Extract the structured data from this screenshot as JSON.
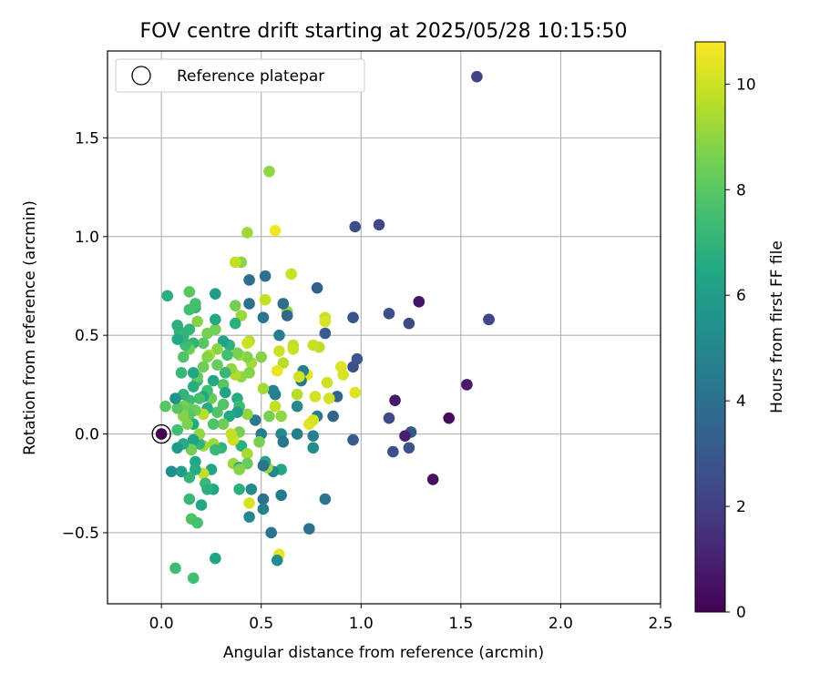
{
  "chart_data": {
    "type": "scatter",
    "title": "FOV centre drift starting at 2025/05/28 10:15:50",
    "xlabel": "Angular distance from reference (arcmin)",
    "ylabel": "Rotation from reference (arcmin)",
    "xlim": [
      -0.27,
      2.5
    ],
    "ylim": [
      -0.86,
      1.94
    ],
    "xticks": [
      0.0,
      0.5,
      1.0,
      1.5,
      2.0,
      2.5
    ],
    "xtick_labels": [
      "0.0",
      "0.5",
      "1.0",
      "1.5",
      "2.0",
      "2.5"
    ],
    "yticks": [
      -0.5,
      0.0,
      0.5,
      1.0,
      1.5
    ],
    "ytick_labels": [
      "−0.5",
      "0.0",
      "0.5",
      "1.0",
      "1.5"
    ],
    "grid": true,
    "legend": {
      "placement": "top-left",
      "entries": [
        "Reference platepar"
      ]
    },
    "colorbar": {
      "label": "Hours from first FF file",
      "colormap": "viridis",
      "range": [
        0,
        10.8
      ],
      "ticks": [
        0,
        2,
        4,
        6,
        8,
        10
      ],
      "tick_labels": [
        "0",
        "2",
        "4",
        "6",
        "8",
        "10"
      ]
    },
    "reference_point": {
      "x": 0.0,
      "y": 0.0
    },
    "points": [
      {
        "x": 0.0,
        "y": 0.0,
        "h": 0.0
      },
      {
        "x": 1.58,
        "y": 1.81,
        "h": 2.2
      },
      {
        "x": 1.64,
        "y": 0.58,
        "h": 2.2
      },
      {
        "x": 1.64,
        "y": 0.58,
        "h": 2.3
      },
      {
        "x": 1.53,
        "y": 0.25,
        "h": 0.8
      },
      {
        "x": 1.44,
        "y": 0.08,
        "h": 0.3
      },
      {
        "x": 1.36,
        "y": -0.23,
        "h": 0.5
      },
      {
        "x": 1.29,
        "y": 0.67,
        "h": 0.6
      },
      {
        "x": 1.24,
        "y": 0.56,
        "h": 2.5
      },
      {
        "x": 1.25,
        "y": 0.01,
        "h": 2.9
      },
      {
        "x": 1.24,
        "y": -0.07,
        "h": 2.7
      },
      {
        "x": 1.22,
        "y": -0.01,
        "h": 0.9
      },
      {
        "x": 1.17,
        "y": 0.17,
        "h": 0.7
      },
      {
        "x": 1.16,
        "y": -0.09,
        "h": 2.6
      },
      {
        "x": 1.14,
        "y": 0.61,
        "h": 2.6
      },
      {
        "x": 1.14,
        "y": 0.08,
        "h": 2.5
      },
      {
        "x": 1.09,
        "y": 1.06,
        "h": 2.4
      },
      {
        "x": 0.97,
        "y": 1.05,
        "h": 2.6
      },
      {
        "x": 0.96,
        "y": 0.59,
        "h": 2.7
      },
      {
        "x": 0.98,
        "y": 0.38,
        "h": 2.9
      },
      {
        "x": 0.96,
        "y": 0.34,
        "h": 2.8
      },
      {
        "x": 0.96,
        "y": -0.03,
        "h": 3.0
      },
      {
        "x": 0.97,
        "y": 0.21,
        "h": 10.3
      },
      {
        "x": 0.9,
        "y": 0.34,
        "h": 10.3
      },
      {
        "x": 0.91,
        "y": 0.3,
        "h": 10.2
      },
      {
        "x": 0.88,
        "y": 0.19,
        "h": 3.4
      },
      {
        "x": 0.86,
        "y": 0.09,
        "h": 3.5
      },
      {
        "x": 0.83,
        "y": 0.26,
        "h": 10.0
      },
      {
        "x": 0.84,
        "y": 0.18,
        "h": 10.1
      },
      {
        "x": 0.82,
        "y": 0.59,
        "h": 9.9
      },
      {
        "x": 0.82,
        "y": 0.57,
        "h": 10.2
      },
      {
        "x": 0.82,
        "y": 0.51,
        "h": 3.2
      },
      {
        "x": 0.82,
        "y": -0.33,
        "h": 4.2
      },
      {
        "x": 0.78,
        "y": 0.74,
        "h": 3.2
      },
      {
        "x": 0.79,
        "y": 0.44,
        "h": 9.7
      },
      {
        "x": 0.76,
        "y": 0.45,
        "h": 9.9
      },
      {
        "x": 0.77,
        "y": 0.19,
        "h": 10.1
      },
      {
        "x": 0.78,
        "y": 0.09,
        "h": 4.5
      },
      {
        "x": 0.76,
        "y": 0.07,
        "h": 10.2
      },
      {
        "x": 0.74,
        "y": 0.05,
        "h": 10.3
      },
      {
        "x": 0.76,
        "y": -0.01,
        "h": 4.7
      },
      {
        "x": 0.76,
        "y": -0.07,
        "h": 5.2
      },
      {
        "x": 0.74,
        "y": -0.48,
        "h": 4.0
      },
      {
        "x": 0.73,
        "y": 0.3,
        "h": 10.4
      },
      {
        "x": 0.71,
        "y": 0.32,
        "h": 4.7
      },
      {
        "x": 0.7,
        "y": 0.27,
        "h": 4.3
      },
      {
        "x": 0.69,
        "y": 0.29,
        "h": 10.0
      },
      {
        "x": 0.68,
        "y": 0.2,
        "h": 9.6
      },
      {
        "x": 0.68,
        "y": 0.14,
        "h": 5.0
      },
      {
        "x": 0.68,
        "y": 0.0,
        "h": 4.6
      },
      {
        "x": 0.66,
        "y": 0.45,
        "h": 9.8
      },
      {
        "x": 0.66,
        "y": 0.43,
        "h": 9.9
      },
      {
        "x": 0.65,
        "y": 0.81,
        "h": 9.9
      },
      {
        "x": 0.63,
        "y": 0.62,
        "h": 9.0
      },
      {
        "x": 0.61,
        "y": 0.66,
        "h": 3.8
      },
      {
        "x": 0.63,
        "y": 0.6,
        "h": 3.6
      },
      {
        "x": 0.61,
        "y": 0.36,
        "h": 9.6
      },
      {
        "x": 0.59,
        "y": 0.42,
        "h": 10.0
      },
      {
        "x": 0.59,
        "y": 0.5,
        "h": 4.5
      },
      {
        "x": 0.58,
        "y": 0.32,
        "h": 10.4
      },
      {
        "x": 0.57,
        "y": 1.03,
        "h": 10.6
      },
      {
        "x": 0.54,
        "y": 1.33,
        "h": 9.0
      },
      {
        "x": 0.57,
        "y": 0.14,
        "h": 9.8
      },
      {
        "x": 0.57,
        "y": 0.2,
        "h": 4.6
      },
      {
        "x": 0.56,
        "y": 0.22,
        "h": 4.8
      },
      {
        "x": 0.6,
        "y": 0.09,
        "h": 9.0
      },
      {
        "x": 0.6,
        "y": 0.0,
        "h": 5.0
      },
      {
        "x": 0.61,
        "y": -0.04,
        "h": 4.2
      },
      {
        "x": 0.6,
        "y": -0.18,
        "h": 6.5
      },
      {
        "x": 0.6,
        "y": -0.31,
        "h": 4.3
      },
      {
        "x": 0.59,
        "y": -0.61,
        "h": 10.4
      },
      {
        "x": 0.58,
        "y": -0.64,
        "h": 5.2
      },
      {
        "x": 0.55,
        "y": -0.5,
        "h": 4.2
      },
      {
        "x": 0.56,
        "y": -0.19,
        "h": 4.9
      },
      {
        "x": 0.53,
        "y": -0.17,
        "h": 9.2
      },
      {
        "x": 0.54,
        "y": 0.09,
        "h": 8.6
      },
      {
        "x": 0.51,
        "y": 0.23,
        "h": 9.3
      },
      {
        "x": 0.52,
        "y": 0.68,
        "h": 9.8
      },
      {
        "x": 0.52,
        "y": 0.8,
        "h": 4.0
      },
      {
        "x": 0.51,
        "y": 0.59,
        "h": 4.2
      },
      {
        "x": 0.5,
        "y": 0.39,
        "h": 8.8
      },
      {
        "x": 0.5,
        "y": 0.0,
        "h": 4.5
      },
      {
        "x": 0.52,
        "y": -0.14,
        "h": 6.3
      },
      {
        "x": 0.51,
        "y": -0.16,
        "h": 4.1
      },
      {
        "x": 0.51,
        "y": -0.33,
        "h": 4.0
      },
      {
        "x": 0.51,
        "y": -0.38,
        "h": 4.7
      },
      {
        "x": 0.49,
        "y": -0.04,
        "h": 8.6
      },
      {
        "x": 0.47,
        "y": 0.07,
        "h": 4.4
      },
      {
        "x": 0.45,
        "y": 0.36,
        "h": 9.3
      },
      {
        "x": 0.44,
        "y": 0.47,
        "h": 9.5
      },
      {
        "x": 0.43,
        "y": 0.46,
        "h": 10.0
      },
      {
        "x": 0.44,
        "y": 0.31,
        "h": 8.8
      },
      {
        "x": 0.43,
        "y": 0.39,
        "h": 8.8
      },
      {
        "x": 0.43,
        "y": 0.1,
        "h": 9.0
      },
      {
        "x": 0.44,
        "y": 0.66,
        "h": 4.0
      },
      {
        "x": 0.44,
        "y": 0.78,
        "h": 3.9
      },
      {
        "x": 0.43,
        "y": 1.02,
        "h": 9.2
      },
      {
        "x": 0.4,
        "y": 0.87,
        "h": 8.9
      },
      {
        "x": 0.37,
        "y": 0.87,
        "h": 9.8
      },
      {
        "x": 0.4,
        "y": 0.6,
        "h": 9.2
      },
      {
        "x": 0.37,
        "y": 0.65,
        "h": 8.5
      },
      {
        "x": 0.37,
        "y": 0.56,
        "h": 6.8
      },
      {
        "x": 0.39,
        "y": 0.4,
        "h": 9.2
      },
      {
        "x": 0.38,
        "y": 0.41,
        "h": 8.6
      },
      {
        "x": 0.4,
        "y": 0.29,
        "h": 9.0
      },
      {
        "x": 0.37,
        "y": 0.3,
        "h": 9.5
      },
      {
        "x": 0.38,
        "y": 0.18,
        "h": 6.6
      },
      {
        "x": 0.39,
        "y": 0.14,
        "h": 7.4
      },
      {
        "x": 0.38,
        "y": 0.11,
        "h": 6.0
      },
      {
        "x": 0.39,
        "y": 0.01,
        "h": 8.6
      },
      {
        "x": 0.4,
        "y": -0.06,
        "h": 6.8
      },
      {
        "x": 0.36,
        "y": -0.03,
        "h": 9.5
      },
      {
        "x": 0.36,
        "y": -0.15,
        "h": 9.2
      },
      {
        "x": 0.39,
        "y": -0.17,
        "h": 6.4
      },
      {
        "x": 0.43,
        "y": -0.1,
        "h": 9.3
      },
      {
        "x": 0.43,
        "y": -0.15,
        "h": 8.3
      },
      {
        "x": 0.45,
        "y": -0.28,
        "h": 5.0
      },
      {
        "x": 0.44,
        "y": -0.35,
        "h": 10.2
      },
      {
        "x": 0.44,
        "y": -0.42,
        "h": 5.0
      },
      {
        "x": 0.39,
        "y": -0.28,
        "h": 6.8
      },
      {
        "x": 0.39,
        "y": -0.18,
        "h": 8.8
      },
      {
        "x": 0.36,
        "y": -0.03,
        "h": 10.0
      },
      {
        "x": 0.35,
        "y": 0.0,
        "h": 9.8
      },
      {
        "x": 0.34,
        "y": 0.09,
        "h": 6.5
      },
      {
        "x": 0.35,
        "y": 0.33,
        "h": 9.0
      },
      {
        "x": 0.34,
        "y": 0.45,
        "h": 6.8
      },
      {
        "x": 0.33,
        "y": 0.4,
        "h": 7.5
      },
      {
        "x": 0.31,
        "y": 0.47,
        "h": 6.2
      },
      {
        "x": 0.32,
        "y": 0.31,
        "h": 7.2
      },
      {
        "x": 0.31,
        "y": 0.25,
        "h": 8.0
      },
      {
        "x": 0.32,
        "y": 0.21,
        "h": 6.2
      },
      {
        "x": 0.31,
        "y": 0.15,
        "h": 7.8
      },
      {
        "x": 0.31,
        "y": 0.05,
        "h": 8.4
      },
      {
        "x": 0.3,
        "y": -0.07,
        "h": 7.0
      },
      {
        "x": 0.28,
        "y": 0.11,
        "h": 7.8
      },
      {
        "x": 0.28,
        "y": 0.35,
        "h": 8.3
      },
      {
        "x": 0.27,
        "y": 0.53,
        "h": 8.5
      },
      {
        "x": 0.27,
        "y": 0.58,
        "h": 6.5
      },
      {
        "x": 0.27,
        "y": 0.71,
        "h": 6.0
      },
      {
        "x": 0.28,
        "y": 0.43,
        "h": 8.9
      },
      {
        "x": 0.26,
        "y": 0.27,
        "h": 6.4
      },
      {
        "x": 0.25,
        "y": 0.18,
        "h": 8.3
      },
      {
        "x": 0.26,
        "y": 0.05,
        "h": 7.8
      },
      {
        "x": 0.26,
        "y": -0.05,
        "h": 9.2
      },
      {
        "x": 0.27,
        "y": -0.08,
        "h": 7.2
      },
      {
        "x": 0.25,
        "y": -0.18,
        "h": 6.4
      },
      {
        "x": 0.26,
        "y": -0.28,
        "h": 6.5
      },
      {
        "x": 0.27,
        "y": -0.63,
        "h": 6.3
      },
      {
        "x": 0.24,
        "y": 0.4,
        "h": 9.5
      },
      {
        "x": 0.23,
        "y": 0.51,
        "h": 8.5
      },
      {
        "x": 0.23,
        "y": 0.39,
        "h": 8.8
      },
      {
        "x": 0.23,
        "y": 0.22,
        "h": 7.5
      },
      {
        "x": 0.23,
        "y": 0.13,
        "h": 6.6
      },
      {
        "x": 0.21,
        "y": 0.46,
        "h": 8.0
      },
      {
        "x": 0.21,
        "y": 0.34,
        "h": 8.4
      },
      {
        "x": 0.21,
        "y": 0.19,
        "h": 6.5
      },
      {
        "x": 0.21,
        "y": 0.1,
        "h": 9.6
      },
      {
        "x": 0.21,
        "y": -0.06,
        "h": 9.2
      },
      {
        "x": 0.21,
        "y": -0.2,
        "h": 9.8
      },
      {
        "x": 0.22,
        "y": -0.25,
        "h": 7.2
      },
      {
        "x": 0.23,
        "y": -0.28,
        "h": 6.8
      },
      {
        "x": 0.2,
        "y": -0.36,
        "h": 6.4
      },
      {
        "x": 0.19,
        "y": -0.05,
        "h": 7.0
      },
      {
        "x": 0.19,
        "y": 0.0,
        "h": 9.0
      },
      {
        "x": 0.19,
        "y": 0.18,
        "h": 7.6
      },
      {
        "x": 0.18,
        "y": 0.27,
        "h": 7.2
      },
      {
        "x": 0.18,
        "y": 0.29,
        "h": 8.2
      },
      {
        "x": 0.18,
        "y": 0.57,
        "h": 8.8
      },
      {
        "x": 0.17,
        "y": 0.64,
        "h": 7.2
      },
      {
        "x": 0.17,
        "y": 0.66,
        "h": 7.6
      },
      {
        "x": 0.16,
        "y": 0.46,
        "h": 7.0
      },
      {
        "x": 0.16,
        "y": 0.31,
        "h": 6.4
      },
      {
        "x": 0.16,
        "y": 0.24,
        "h": 6.7
      },
      {
        "x": 0.17,
        "y": 0.12,
        "h": 8.4
      },
      {
        "x": 0.16,
        "y": 0.05,
        "h": 6.5
      },
      {
        "x": 0.16,
        "y": -0.03,
        "h": 6.2
      },
      {
        "x": 0.15,
        "y": -0.08,
        "h": 8.5
      },
      {
        "x": 0.17,
        "y": -0.14,
        "h": 6.4
      },
      {
        "x": 0.17,
        "y": -0.18,
        "h": 6.6
      },
      {
        "x": 0.14,
        "y": -0.22,
        "h": 7.0
      },
      {
        "x": 0.14,
        "y": -0.33,
        "h": 7.2
      },
      {
        "x": 0.15,
        "y": -0.43,
        "h": 7.8
      },
      {
        "x": 0.18,
        "y": -0.45,
        "h": 7.6
      },
      {
        "x": 0.16,
        "y": -0.73,
        "h": 7.5
      },
      {
        "x": 0.14,
        "y": 0.53,
        "h": 7.0
      },
      {
        "x": 0.14,
        "y": 0.63,
        "h": 7.5
      },
      {
        "x": 0.14,
        "y": 0.72,
        "h": 8.0
      },
      {
        "x": 0.14,
        "y": 0.43,
        "h": 8.4
      },
      {
        "x": 0.14,
        "y": 0.17,
        "h": 7.3
      },
      {
        "x": 0.14,
        "y": 0.13,
        "h": 8.2
      },
      {
        "x": 0.14,
        "y": 0.1,
        "h": 8.0
      },
      {
        "x": 0.13,
        "y": 0.05,
        "h": 8.7
      },
      {
        "x": 0.12,
        "y": 0.45,
        "h": 7.4
      },
      {
        "x": 0.11,
        "y": 0.49,
        "h": 7.0
      },
      {
        "x": 0.11,
        "y": 0.39,
        "h": 7.8
      },
      {
        "x": 0.11,
        "y": 0.2,
        "h": 7.0
      },
      {
        "x": 0.11,
        "y": 0.14,
        "h": 8.6
      },
      {
        "x": 0.11,
        "y": 0.12,
        "h": 8.4
      },
      {
        "x": 0.11,
        "y": 0.09,
        "h": 8.8
      },
      {
        "x": 0.11,
        "y": -0.05,
        "h": 6.6
      },
      {
        "x": 0.1,
        "y": -0.19,
        "h": 6.0
      },
      {
        "x": 0.1,
        "y": 0.31,
        "h": 7.2
      },
      {
        "x": 0.09,
        "y": 0.52,
        "h": 7.0
      },
      {
        "x": 0.08,
        "y": 0.55,
        "h": 6.8
      },
      {
        "x": 0.08,
        "y": 0.48,
        "h": 6.5
      },
      {
        "x": 0.08,
        "y": 0.13,
        "h": 8.0
      },
      {
        "x": 0.08,
        "y": 0.02,
        "h": 7.5
      },
      {
        "x": 0.08,
        "y": -0.07,
        "h": 5.8
      },
      {
        "x": 0.07,
        "y": 0.18,
        "h": 5.5
      },
      {
        "x": 0.07,
        "y": -0.68,
        "h": 7.4
      },
      {
        "x": 0.05,
        "y": -0.19,
        "h": 5.2
      },
      {
        "x": 0.03,
        "y": 0.7,
        "h": 6.8
      },
      {
        "x": 0.02,
        "y": 0.14,
        "h": 8.0
      }
    ]
  }
}
